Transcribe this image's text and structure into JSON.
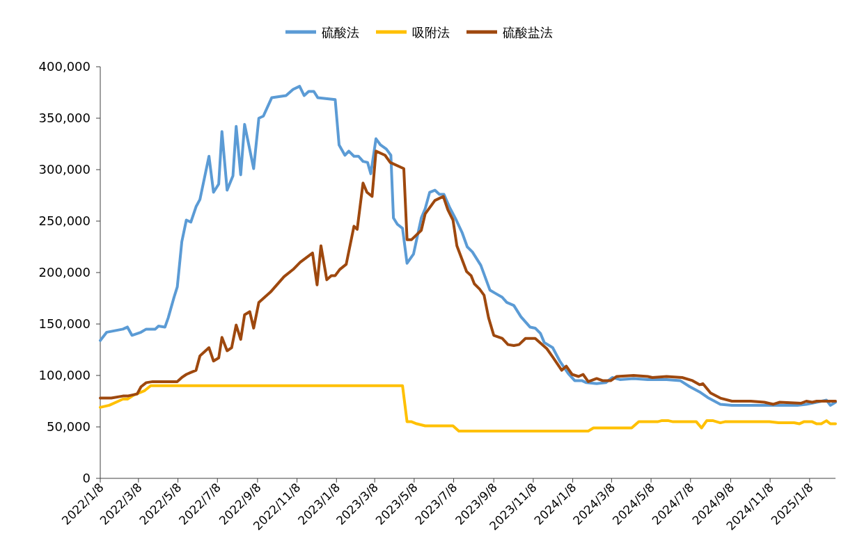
{
  "chart_data": {
    "type": "line",
    "legend": "top",
    "grid": false,
    "marker": "none",
    "line_style": "solid",
    "xlim": [
      "2022-01-08",
      "2025-02-17"
    ],
    "xticks": [
      {
        "value": "2022-01-08",
        "label": "2022/1/8"
      },
      {
        "value": "2022-03-08",
        "label": "2022/3/8"
      },
      {
        "value": "2022-05-08",
        "label": "2022/5/8"
      },
      {
        "value": "2022-07-08",
        "label": "2022/7/8"
      },
      {
        "value": "2022-09-08",
        "label": "2022/9/8"
      },
      {
        "value": "2022-11-08",
        "label": "2022/11/8"
      },
      {
        "value": "2023-01-08",
        "label": "2023/1/8"
      },
      {
        "value": "2023-03-08",
        "label": "2023/3/8"
      },
      {
        "value": "2023-05-08",
        "label": "2023/5/8"
      },
      {
        "value": "2023-07-08",
        "label": "2023/7/8"
      },
      {
        "value": "2023-09-08",
        "label": "2023/9/8"
      },
      {
        "value": "2023-11-08",
        "label": "2023/11/8"
      },
      {
        "value": "2024-01-08",
        "label": "2024/1/8"
      },
      {
        "value": "2024-03-08",
        "label": "2024/3/8"
      },
      {
        "value": "2024-05-08",
        "label": "2024/5/8"
      },
      {
        "value": "2024-07-08",
        "label": "2024/7/8"
      },
      {
        "value": "2024-09-08",
        "label": "2024/9/8"
      },
      {
        "value": "2024-11-08",
        "label": "2024/11/8"
      },
      {
        "value": "2025-01-08",
        "label": "2025/1/8"
      }
    ],
    "ylim": [
      0,
      400000
    ],
    "yticks": [
      0,
      {
        "value": 50000,
        "label": "50,000"
      },
      {
        "value": 100000,
        "label": "100,000"
      },
      {
        "value": 150000,
        "label": "150,000"
      },
      {
        "value": 200000,
        "label": "200,000"
      },
      {
        "value": 250000,
        "label": "250,000"
      },
      {
        "value": 300000,
        "label": "300,000"
      },
      {
        "value": 350000,
        "label": "350,000"
      },
      {
        "value": 400000,
        "label": "400,000"
      }
    ],
    "series": [
      {
        "name": "硫酸法",
        "color": "#5b9bd5",
        "x": [
          "2022-01-08",
          "2022-01-18",
          "2022-02-12",
          "2022-02-19",
          "2022-02-26",
          "2022-03-12",
          "2022-03-20",
          "2022-04-03",
          "2022-04-08",
          "2022-04-18",
          "2022-04-23",
          "2022-05-02",
          "2022-05-07",
          "2022-05-14",
          "2022-05-21",
          "2022-05-28",
          "2022-06-05",
          "2022-06-11",
          "2022-06-25",
          "2022-07-02",
          "2022-07-10",
          "2022-07-15",
          "2022-07-23",
          "2022-08-01",
          "2022-08-06",
          "2022-08-13",
          "2022-08-19",
          "2022-09-02",
          "2022-09-10",
          "2022-09-17",
          "2022-09-30",
          "2022-10-22",
          "2022-11-02",
          "2022-11-12",
          "2022-11-19",
          "2022-11-26",
          "2022-12-04",
          "2022-12-10",
          "2023-01-06",
          "2023-01-12",
          "2023-01-21",
          "2023-01-27",
          "2023-02-04",
          "2023-02-11",
          "2023-02-18",
          "2023-02-25",
          "2023-03-02",
          "2023-03-10",
          "2023-03-17",
          "2023-03-26",
          "2023-04-02",
          "2023-04-06",
          "2023-04-12",
          "2023-04-20",
          "2023-04-27",
          "2023-05-07",
          "2023-05-19",
          "2023-05-25",
          "2023-06-01",
          "2023-06-09",
          "2023-06-16",
          "2023-06-23",
          "2023-07-02",
          "2023-07-12",
          "2023-07-21",
          "2023-07-29",
          "2023-08-06",
          "2023-08-19",
          "2023-09-02",
          "2023-09-10",
          "2023-09-21",
          "2023-09-28",
          "2023-10-09",
          "2023-10-20",
          "2023-11-03",
          "2023-11-11",
          "2023-11-19",
          "2023-11-25",
          "2023-12-08",
          "2023-12-19",
          "2024-01-01",
          "2024-01-11",
          "2024-01-22",
          "2024-01-29",
          "2024-02-14",
          "2024-02-28",
          "2024-03-09",
          "2024-03-21",
          "2024-04-11",
          "2024-05-03",
          "2024-06-01",
          "2024-06-22",
          "2024-07-07",
          "2024-07-22",
          "2024-08-05",
          "2024-08-23",
          "2024-09-10",
          "2024-10-02",
          "2024-11-03",
          "2024-11-21",
          "2024-12-20",
          "2025-01-03",
          "2025-01-19",
          "2025-02-03",
          "2025-02-09",
          "2025-02-17"
        ],
        "values": [
          134000,
          142000,
          145000,
          147000,
          139000,
          142000,
          145000,
          145000,
          148000,
          147000,
          156000,
          176000,
          186000,
          230000,
          251000,
          249000,
          264000,
          271000,
          313000,
          278000,
          286000,
          337000,
          280000,
          294000,
          342000,
          295000,
          344000,
          301000,
          350000,
          352000,
          370000,
          372000,
          378000,
          381000,
          372000,
          376000,
          376000,
          370000,
          368000,
          324000,
          314000,
          318000,
          313000,
          313000,
          308000,
          307000,
          296000,
          330000,
          324000,
          320000,
          314000,
          253000,
          247000,
          243000,
          209000,
          218000,
          253000,
          262000,
          278000,
          280000,
          276000,
          276000,
          263000,
          251000,
          239000,
          225000,
          220000,
          207000,
          183000,
          180000,
          176000,
          171000,
          168000,
          157000,
          147000,
          146000,
          141000,
          132000,
          127000,
          114000,
          102000,
          95000,
          95000,
          93000,
          92000,
          93000,
          98000,
          96000,
          97000,
          96000,
          96000,
          95000,
          89000,
          84000,
          78000,
          72000,
          71000,
          71000,
          71000,
          71000,
          71000,
          72000,
          74000,
          76000,
          71000,
          74000
        ]
      },
      {
        "name": "吸附法",
        "color": "#ffc000",
        "x": [
          "2022-01-08",
          "2022-01-22",
          "2022-02-05",
          "2022-02-12",
          "2022-02-19",
          "2022-03-01",
          "2022-03-17",
          "2022-03-27",
          "2023-04-20",
          "2023-04-27",
          "2023-05-04",
          "2023-05-12",
          "2023-05-25",
          "2023-07-07",
          "2023-07-16",
          "2024-02-01",
          "2024-02-09",
          "2024-04-08",
          "2024-04-19",
          "2024-05-18",
          "2024-05-24",
          "2024-06-04",
          "2024-06-11",
          "2024-07-17",
          "2024-07-25",
          "2024-08-02",
          "2024-08-12",
          "2024-08-23",
          "2024-08-30",
          "2024-11-07",
          "2024-11-21",
          "2024-12-15",
          "2024-12-23",
          "2024-12-30",
          "2025-01-12",
          "2025-01-19",
          "2025-01-26",
          "2025-02-03",
          "2025-02-09",
          "2025-02-17"
        ],
        "values": [
          69000,
          71000,
          75000,
          77000,
          77000,
          81000,
          85000,
          90000,
          90000,
          55000,
          55000,
          53000,
          51000,
          51000,
          46000,
          46000,
          49000,
          49000,
          55000,
          55000,
          56000,
          56000,
          55000,
          55000,
          49000,
          56000,
          56000,
          54000,
          55000,
          55000,
          54000,
          54000,
          53000,
          55000,
          55000,
          53000,
          53000,
          56000,
          53000,
          53000
        ]
      },
      {
        "name": "硫酸盐法",
        "color": "#9e480e",
        "x": [
          "2022-01-08",
          "2022-01-25",
          "2022-02-12",
          "2022-02-19",
          "2022-03-06",
          "2022-03-12",
          "2022-03-20",
          "2022-03-30",
          "2022-05-07",
          "2022-05-14",
          "2022-05-21",
          "2022-05-28",
          "2022-06-05",
          "2022-06-11",
          "2022-06-25",
          "2022-07-02",
          "2022-07-10",
          "2022-07-15",
          "2022-07-23",
          "2022-07-30",
          "2022-08-06",
          "2022-08-13",
          "2022-08-19",
          "2022-08-27",
          "2022-09-02",
          "2022-09-10",
          "2022-09-28",
          "2022-10-19",
          "2022-11-02",
          "2022-11-13",
          "2022-12-02",
          "2022-12-09",
          "2022-12-15",
          "2022-12-24",
          "2022-12-31",
          "2023-01-06",
          "2023-01-13",
          "2023-01-23",
          "2023-02-04",
          "2023-02-09",
          "2023-02-18",
          "2023-02-24",
          "2023-03-04",
          "2023-03-10",
          "2023-03-24",
          "2023-04-01",
          "2023-04-22",
          "2023-04-27",
          "2023-05-04",
          "2023-05-19",
          "2023-05-25",
          "2023-06-09",
          "2023-06-22",
          "2023-06-29",
          "2023-07-07",
          "2023-07-13",
          "2023-07-28",
          "2023-08-04",
          "2023-08-09",
          "2023-08-17",
          "2023-08-24",
          "2023-08-31",
          "2023-09-08",
          "2023-09-21",
          "2023-09-30",
          "2023-10-09",
          "2023-10-17",
          "2023-10-27",
          "2023-11-11",
          "2023-11-29",
          "2023-12-08",
          "2023-12-22",
          "2023-12-29",
          "2024-01-07",
          "2024-01-17",
          "2024-01-24",
          "2024-02-01",
          "2024-02-14",
          "2024-02-23",
          "2024-03-07",
          "2024-03-16",
          "2024-04-11",
          "2024-05-03",
          "2024-05-10",
          "2024-06-01",
          "2024-06-25",
          "2024-07-11",
          "2024-07-22",
          "2024-07-27",
          "2024-08-08",
          "2024-08-23",
          "2024-09-10",
          "2024-10-09",
          "2024-10-30",
          "2024-11-13",
          "2024-11-23",
          "2024-12-26",
          "2025-01-03",
          "2025-01-12",
          "2025-01-19",
          "2025-02-17"
        ],
        "values": [
          78000,
          78000,
          80000,
          80000,
          82000,
          89000,
          93000,
          94000,
          94000,
          98000,
          101000,
          103000,
          105000,
          119000,
          127000,
          114000,
          117000,
          137000,
          124000,
          127000,
          149000,
          135000,
          159000,
          162000,
          146000,
          171000,
          181000,
          196000,
          203000,
          210000,
          219000,
          188000,
          226000,
          193000,
          197000,
          197000,
          203000,
          208000,
          245000,
          242000,
          287000,
          278000,
          274000,
          318000,
          314000,
          307000,
          301000,
          232000,
          232000,
          241000,
          257000,
          270000,
          274000,
          261000,
          251000,
          226000,
          201000,
          197000,
          189000,
          184000,
          178000,
          156000,
          139000,
          136000,
          130000,
          129000,
          130000,
          136000,
          136000,
          126000,
          118000,
          105000,
          109000,
          101000,
          99000,
          101000,
          94000,
          97000,
          95000,
          95000,
          99000,
          100000,
          99000,
          98000,
          99000,
          98000,
          95000,
          91000,
          92000,
          83000,
          78000,
          75000,
          75000,
          74000,
          72000,
          74000,
          73000,
          75000,
          74000,
          75000,
          75000
        ]
      }
    ]
  }
}
